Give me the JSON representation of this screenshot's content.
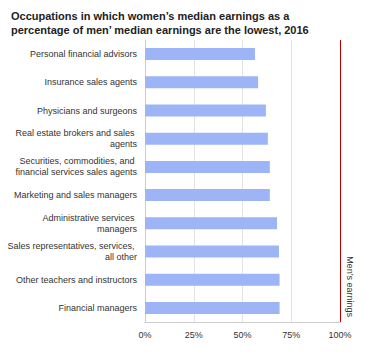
{
  "chart_data": {
    "type": "bar",
    "orientation": "horizontal",
    "title": "Occupations in which women’s median earnings as a percentage of men’ median earnings are the lowest, 2016",
    "categories": [
      "Personal financial advisors",
      "Insurance sales agents",
      "Physicians and surgeons",
      "Real estate brokers and sales agents",
      "Securities, commodities, and financial services sales agents",
      "Marketing and sales managers",
      "Administrative services managers",
      "Sales representatives, services, all other",
      "Other teachers and instructors",
      "Financial managers"
    ],
    "values": [
      56.4,
      58,
      62,
      63,
      64,
      64,
      67.7,
      68.7,
      69,
      69
    ],
    "color": "#9db5f6",
    "xlim": [
      0,
      100
    ],
    "xticks": [
      {
        "value": 0,
        "label": "0%"
      },
      {
        "value": 25,
        "label": "25%"
      },
      {
        "value": 50,
        "label": "50%"
      },
      {
        "value": 75,
        "label": "75%"
      },
      {
        "value": 100,
        "label": "100%"
      }
    ],
    "grid": true,
    "annotations": [
      {
        "text": "Men’s earnings",
        "x": 100
      }
    ]
  }
}
